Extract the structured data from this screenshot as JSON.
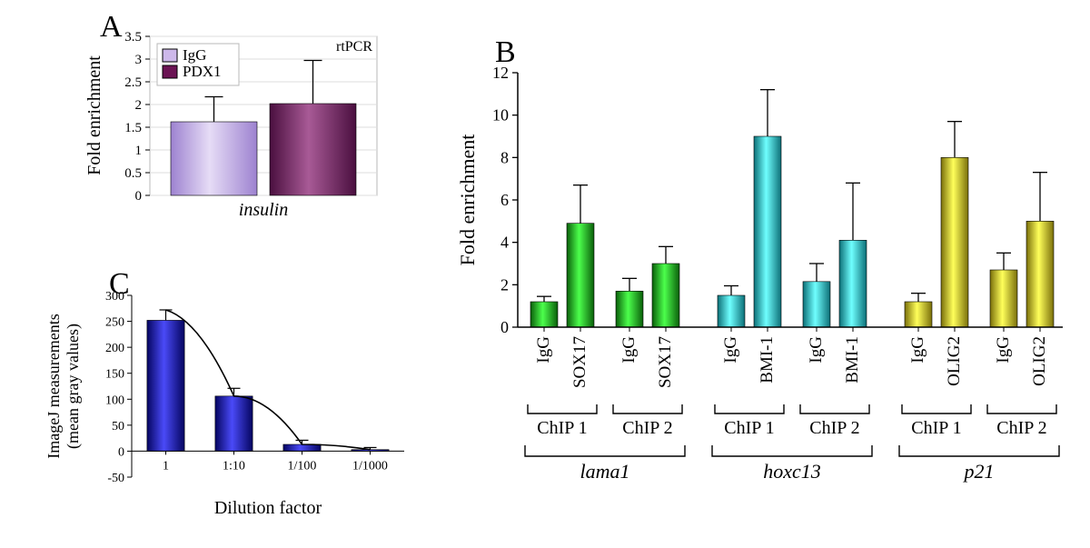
{
  "panelA": {
    "label": "A",
    "type": "bar",
    "title_label": "rtPCR",
    "xlabel": "insulin",
    "ylabel": "Fold enrichment",
    "legend": [
      "IgG",
      "PDX1"
    ],
    "categories": [
      "insulin"
    ],
    "values": [
      1.62,
      2.02
    ],
    "errors": [
      0.55,
      0.95
    ],
    "bar_colors_light": [
      "#cbb6e8",
      "#8e3a7a"
    ],
    "bar_colors_dark": [
      "#8f74c6",
      "#4a0f3f"
    ],
    "legend_swatches": [
      "#cdb8ea",
      "#6b1454"
    ],
    "ylim": [
      0,
      3.5
    ],
    "ytick_step": 0.5,
    "label_fontsize": 18,
    "panel_label_fontsize": 30,
    "background": "#ffffff",
    "axis_color": "#000000",
    "grid_color": "#d0d0d0",
    "bar_width": 0.8,
    "border_thin": "#a0a0a0"
  },
  "panelB": {
    "label": "B",
    "type": "bar",
    "ylabel": "Fold enrichment",
    "ylim": [
      0,
      12
    ],
    "ytick_step": 2,
    "groups": [
      {
        "gene": "lama1",
        "chip": "ChIP 1",
        "bars": [
          {
            "name": "IgG",
            "val": 1.2,
            "err": 0.25
          },
          {
            "name": "SOX17",
            "val": 4.9,
            "err": 1.8
          }
        ],
        "colors": [
          "#2bd12b",
          "#0a5f0a"
        ]
      },
      {
        "gene": "lama1",
        "chip": "ChIP 2",
        "bars": [
          {
            "name": "IgG",
            "val": 1.7,
            "err": 0.6
          },
          {
            "name": "SOX17",
            "val": 3.0,
            "err": 0.8
          }
        ],
        "colors": [
          "#2bd12b",
          "#0a5f0a"
        ]
      },
      {
        "gene": "hoxc13",
        "chip": "ChIP 1",
        "bars": [
          {
            "name": "IgG",
            "val": 1.5,
            "err": 0.45
          },
          {
            "name": "BMI-1",
            "val": 9.0,
            "err": 2.2
          }
        ],
        "colors": [
          "#2fe5e5",
          "#0c6f77"
        ]
      },
      {
        "gene": "hoxc13",
        "chip": "ChIP 2",
        "bars": [
          {
            "name": "IgG",
            "val": 2.15,
            "err": 0.85
          },
          {
            "name": "BMI-1",
            "val": 4.1,
            "err": 2.7
          }
        ],
        "colors": [
          "#2fe5e5",
          "#0c6f77"
        ]
      },
      {
        "gene": "p21",
        "chip": "ChIP 1",
        "bars": [
          {
            "name": "IgG",
            "val": 1.2,
            "err": 0.4
          },
          {
            "name": "OLIG2",
            "val": 8.0,
            "err": 1.7
          }
        ],
        "colors": [
          "#f7f727",
          "#7a6f0a"
        ]
      },
      {
        "gene": "p21",
        "chip": "ChIP 2",
        "bars": [
          {
            "name": "IgG",
            "val": 2.7,
            "err": 0.8
          },
          {
            "name": "OLIG2",
            "val": 5.0,
            "err": 2.3
          }
        ],
        "colors": [
          "#f7f727",
          "#7a6f0a"
        ]
      }
    ],
    "gene_labels": [
      "lama1",
      "hoxc13",
      "p21"
    ],
    "chip_labels": [
      "ChIP 1",
      "ChIP 2"
    ],
    "label_fontsize": 20,
    "axis_fontsize": 16,
    "tick_label_fontsize": 18,
    "panel_label_fontsize": 30,
    "background": "#ffffff",
    "axis_color": "#000000",
    "error_color": "#000000"
  },
  "panelC": {
    "label": "C",
    "type": "bar-with-curve",
    "ylabel_line1": "ImageJ measurements",
    "ylabel_line2": "(mean gray values)",
    "xlabel": "Dilution factor",
    "categories": [
      "1",
      "1:10",
      "1/100",
      "1/1000"
    ],
    "values": [
      252,
      106,
      13,
      3
    ],
    "errors": [
      20,
      15,
      8,
      4
    ],
    "bar_color_light": "#3a3af5",
    "bar_color_dark": "#050560",
    "ylim": [
      -50,
      300
    ],
    "yticks": [
      -50,
      0,
      50,
      100,
      150,
      200,
      250,
      300
    ],
    "curve_color": "#000000",
    "label_fontsize": 18,
    "panel_label_fontsize": 30,
    "axis_color": "#000000"
  }
}
